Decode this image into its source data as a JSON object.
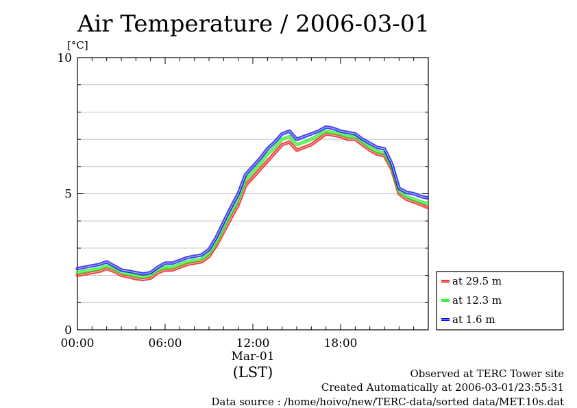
{
  "chart_data": {
    "type": "line",
    "title": "Air Temperature / 2006-03-01",
    "ylabel": "[°C]",
    "xlabel": "(LST)",
    "x_date_label": "Mar-01",
    "x_ticks": [
      "00:00",
      "06:00",
      "12:00",
      "18:00"
    ],
    "y_ticks": [
      "0",
      "5",
      "10"
    ],
    "ylim": [
      0,
      10
    ],
    "xlim": [
      "00:00",
      "24:00"
    ],
    "grid": true,
    "legend_position": "bottom-right",
    "x": [
      "00:00",
      "00:30",
      "01:00",
      "01:30",
      "02:00",
      "02:30",
      "03:00",
      "03:30",
      "04:00",
      "04:30",
      "05:00",
      "05:30",
      "06:00",
      "06:30",
      "07:00",
      "07:30",
      "08:00",
      "08:30",
      "09:00",
      "09:30",
      "10:00",
      "10:30",
      "11:00",
      "11:30",
      "12:00",
      "12:30",
      "13:00",
      "13:30",
      "14:00",
      "14:30",
      "15:00",
      "15:30",
      "16:00",
      "16:30",
      "17:00",
      "17:30",
      "18:00",
      "18:30",
      "19:00",
      "19:30",
      "20:00",
      "20:30",
      "21:00",
      "21:30",
      "22:00",
      "22:30",
      "23:00",
      "23:30",
      "23:55"
    ],
    "series": [
      {
        "name": "at 29.5 m",
        "color": "#ff0000",
        "values": [
          2.0,
          2.05,
          2.1,
          2.15,
          2.25,
          2.15,
          2.0,
          1.95,
          1.88,
          1.85,
          1.9,
          2.1,
          2.2,
          2.2,
          2.3,
          2.4,
          2.45,
          2.5,
          2.7,
          3.1,
          3.6,
          4.1,
          4.6,
          5.3,
          5.6,
          5.9,
          6.2,
          6.5,
          6.8,
          6.9,
          6.6,
          6.7,
          6.8,
          7.0,
          7.2,
          7.15,
          7.1,
          7.0,
          7.0,
          6.8,
          6.6,
          6.45,
          6.4,
          5.9,
          5.0,
          4.8,
          4.7,
          4.6,
          4.5
        ]
      },
      {
        "name": "at 12.3 m",
        "color": "#00ff00",
        "values": [
          2.1,
          2.15,
          2.2,
          2.25,
          2.35,
          2.25,
          2.1,
          2.05,
          1.98,
          1.95,
          2.0,
          2.2,
          2.3,
          2.3,
          2.4,
          2.5,
          2.55,
          2.6,
          2.8,
          3.2,
          3.75,
          4.3,
          4.8,
          5.5,
          5.8,
          6.1,
          6.45,
          6.7,
          7.0,
          7.1,
          6.8,
          6.9,
          7.0,
          7.15,
          7.3,
          7.25,
          7.2,
          7.1,
          7.1,
          6.9,
          6.7,
          6.55,
          6.5,
          6.0,
          5.1,
          4.9,
          4.8,
          4.7,
          4.65
        ]
      },
      {
        "name": "at 1.6 m",
        "color": "#0000ff",
        "values": [
          2.25,
          2.3,
          2.35,
          2.4,
          2.5,
          2.35,
          2.2,
          2.15,
          2.1,
          2.05,
          2.1,
          2.3,
          2.45,
          2.45,
          2.55,
          2.65,
          2.7,
          2.75,
          2.95,
          3.4,
          3.95,
          4.5,
          5.0,
          5.7,
          6.0,
          6.3,
          6.65,
          6.9,
          7.2,
          7.3,
          7.0,
          7.1,
          7.2,
          7.3,
          7.45,
          7.4,
          7.3,
          7.25,
          7.2,
          7.0,
          6.85,
          6.7,
          6.65,
          6.1,
          5.2,
          5.05,
          5.0,
          4.9,
          4.85
        ]
      }
    ]
  },
  "footer": {
    "line1": "Observed at TERC Tower site",
    "line2": "Created Automatically at 2006-03-01/23:55:31",
    "line3": "Data source : /home/hoivo/new/TERC-data/sorted  data/MET.10s.dat"
  }
}
